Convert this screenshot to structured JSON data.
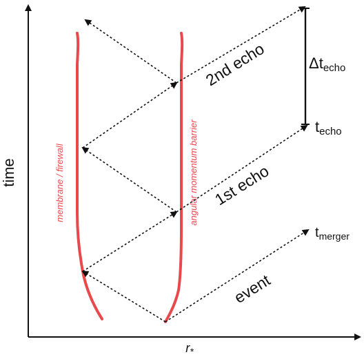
{
  "axes": {
    "x_label_main": "r",
    "x_label_sub": "*",
    "y_label": "time"
  },
  "walls": {
    "membrane_label": "membrane / firewall",
    "barrier_label": "angular momentum barrier",
    "color": "#e8494c"
  },
  "echo_labels": {
    "first": "1st echo",
    "second": "2nd echo",
    "event": "event"
  },
  "time_markers": {
    "t_main": "t",
    "t_merger_sub": "merger",
    "t_echo_sub": "echo",
    "delta_main": "Δt",
    "delta_sub": "echo"
  },
  "colors": {
    "axis": "#111111",
    "arrows": "#111111",
    "text": "#111111"
  }
}
